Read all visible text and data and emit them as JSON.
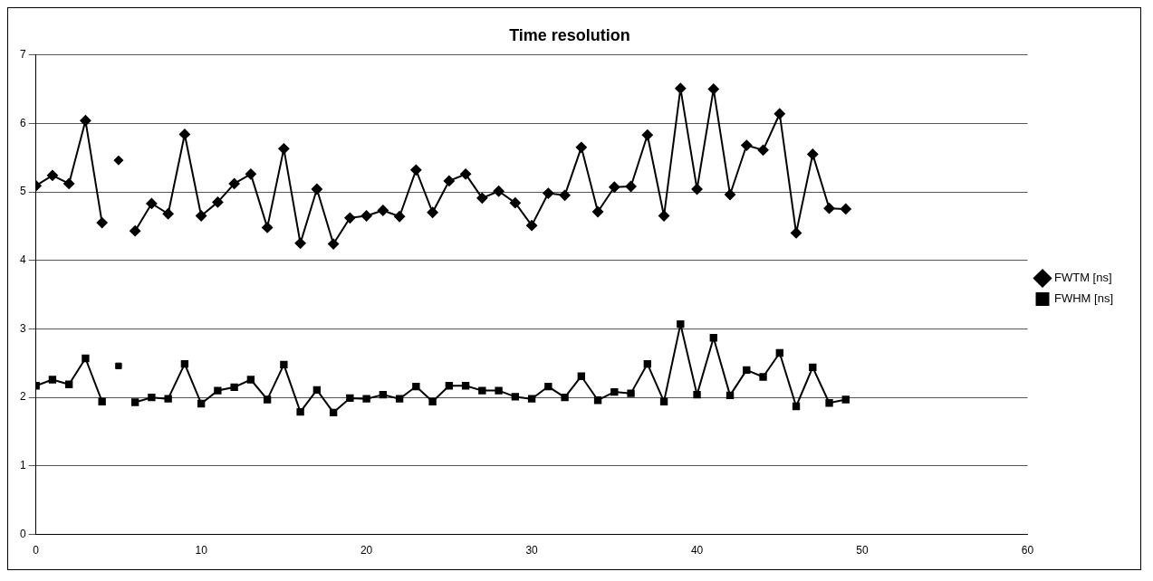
{
  "chart_data": {
    "type": "line",
    "title": "Time resolution",
    "x": [
      0,
      1,
      2,
      3,
      4,
      5,
      6,
      7,
      8,
      9,
      10,
      11,
      12,
      13,
      14,
      15,
      16,
      17,
      18,
      19,
      20,
      21,
      22,
      23,
      24,
      25,
      26,
      27,
      28,
      29,
      30,
      31,
      32,
      33,
      34,
      35,
      36,
      37,
      38,
      39,
      40,
      41,
      42,
      43,
      44,
      45,
      46,
      47,
      48,
      49
    ],
    "series": [
      {
        "name": "FWTM [ns]",
        "color": "#000000",
        "marker": "diamond",
        "values": [
          5.09,
          5.24,
          5.12,
          6.04,
          4.55,
          null,
          4.43,
          4.83,
          4.68,
          5.84,
          4.65,
          4.85,
          5.12,
          5.26,
          4.48,
          5.63,
          4.25,
          5.04,
          4.24,
          4.62,
          4.65,
          4.73,
          4.64,
          5.32,
          4.7,
          5.16,
          5.26,
          4.91,
          5.01,
          4.84,
          4.51,
          4.98,
          4.95,
          5.65,
          4.71,
          5.07,
          5.08,
          5.83,
          4.65,
          6.51,
          5.04,
          6.5,
          4.96,
          5.68,
          5.61,
          6.14,
          4.4,
          5.55,
          4.76,
          4.75
        ]
      },
      {
        "name": "FWHM [ns]",
        "color": "#000000",
        "marker": "square",
        "values": [
          2.17,
          2.26,
          2.19,
          2.57,
          1.94,
          null,
          1.93,
          2.0,
          1.98,
          2.49,
          1.91,
          2.1,
          2.15,
          2.26,
          1.97,
          2.48,
          1.79,
          2.11,
          1.78,
          1.99,
          1.98,
          2.04,
          1.98,
          2.16,
          1.94,
          2.17,
          2.17,
          2.1,
          2.1,
          2.01,
          1.98,
          2.16,
          2.0,
          2.31,
          1.96,
          2.08,
          2.06,
          2.49,
          1.94,
          3.07,
          2.04,
          2.87,
          2.03,
          2.4,
          2.3,
          2.65,
          1.87,
          2.44,
          1.92,
          1.97
        ]
      },
      {
        "type": "scatter",
        "color": "#000000",
        "marker": "diamond",
        "x": [
          5
        ],
        "values": [
          5.46
        ]
      },
      {
        "type": "scatter",
        "color": "#000000",
        "marker": "square",
        "x": [
          5
        ],
        "values": [
          2.46
        ]
      }
    ],
    "xlim": [
      0,
      60
    ],
    "xticks": [
      0,
      10,
      20,
      30,
      40,
      50,
      60
    ],
    "ylim": [
      0,
      7
    ],
    "yticks": [
      0,
      1,
      2,
      3,
      4,
      5,
      6,
      7
    ],
    "grid": "y",
    "legend": "right",
    "line_style": "solid"
  }
}
